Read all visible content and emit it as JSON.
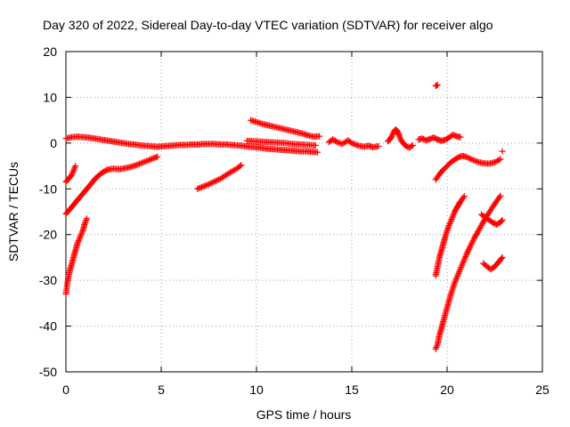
{
  "chart_data": {
    "type": "scatter",
    "title": "Day 320 of 2022, Sidereal Day-to-day VTEC variation (SDTVAR) for receiver algo",
    "xlabel": "GPS time / hours",
    "ylabel": "SDTVAR / TECUs",
    "xlim": [
      0,
      25
    ],
    "ylim": [
      -50,
      20
    ],
    "xticks": [
      0,
      5,
      10,
      15,
      20,
      25
    ],
    "yticks": [
      -50,
      -40,
      -30,
      -20,
      -10,
      0,
      10,
      20
    ],
    "xtick_labels": [
      "0",
      "5",
      "10",
      "15",
      "20",
      "25"
    ],
    "ytick_labels": [
      "-50",
      "-40",
      "-30",
      "-20",
      "-10",
      "0",
      "10",
      "20"
    ],
    "grid": true,
    "marker": "plus",
    "series": [
      {
        "name": "SDTVAR",
        "color": "#ff0000",
        "segments": [
          {
            "x": [
              0.0,
              0.1,
              0.2,
              0.3,
              0.4,
              0.5,
              0.6,
              0.7,
              0.8,
              0.9,
              1.0,
              1.1
            ],
            "y": [
              -33,
              -30,
              -28,
              -26.5,
              -25,
              -23.5,
              -22,
              -21,
              -20,
              -19,
              -17.5,
              -16.5
            ]
          },
          {
            "x": [
              0.0,
              0.1,
              0.2,
              0.3,
              0.4,
              0.5
            ],
            "y": [
              -8.5,
              -8,
              -7.5,
              -7,
              -6,
              -5
            ]
          },
          {
            "x": [
              0.0,
              0.2,
              0.4,
              0.6,
              0.8,
              1.0,
              1.2,
              1.4,
              1.6,
              1.8,
              2.0,
              2.2
            ],
            "y": [
              -15.5,
              -14.5,
              -13.5,
              -12.5,
              -11.5,
              -10.5,
              -9.5,
              -8.5,
              -7.5,
              -6.8,
              -6.2,
              -5.8
            ]
          },
          {
            "x": [
              2.2,
              2.5,
              2.8,
              3.1,
              3.4,
              3.7,
              4.0,
              4.3,
              4.6,
              4.8
            ],
            "y": [
              -5.8,
              -5.6,
              -5.7,
              -5.5,
              -5.2,
              -4.8,
              -4.3,
              -3.8,
              -3.3,
              -3.0
            ]
          },
          {
            "x": [
              0.0,
              0.3,
              0.6,
              0.9,
              1.2,
              1.5,
              1.8,
              2.1,
              2.4,
              2.7,
              3.0,
              3.3,
              3.6,
              3.9,
              4.2,
              4.5,
              4.8,
              5.1,
              5.4,
              5.7,
              6.0,
              6.3,
              6.6,
              6.9,
              7.2,
              7.5,
              7.8,
              8.1,
              8.4,
              8.7,
              9.0,
              9.3,
              9.6,
              9.9,
              10.2,
              10.5,
              10.8,
              11.1,
              11.4,
              11.7,
              12.0,
              12.3,
              12.6,
              12.9,
              13.2
            ],
            "y": [
              1.0,
              1.3,
              1.4,
              1.3,
              1.2,
              1.0,
              0.8,
              0.6,
              0.4,
              0.2,
              0.0,
              -0.2,
              -0.3,
              -0.5,
              -0.6,
              -0.7,
              -0.8,
              -0.7,
              -0.6,
              -0.5,
              -0.4,
              -0.4,
              -0.3,
              -0.3,
              -0.2,
              -0.2,
              -0.2,
              -0.3,
              -0.3,
              -0.4,
              -0.5,
              -0.6,
              -0.8,
              -0.9,
              -1.0,
              -1.2,
              -1.3,
              -1.4,
              -1.5,
              -1.6,
              -1.7,
              -1.8,
              -1.8,
              -1.9,
              -2.0
            ]
          },
          {
            "x": [
              9.7,
              10.0,
              10.3,
              10.6,
              10.9,
              11.2,
              11.5,
              11.8,
              12.1,
              12.4,
              12.7,
              13.0,
              13.3
            ],
            "y": [
              5.0,
              4.6,
              4.2,
              3.9,
              3.6,
              3.3,
              3.0,
              2.7,
              2.4,
              2.1,
              1.7,
              1.4,
              1.5
            ]
          },
          {
            "x": [
              9.5,
              9.9,
              10.3,
              10.7,
              11.1,
              11.5,
              11.9,
              12.3,
              12.7,
              13.1
            ],
            "y": [
              0.5,
              0.4,
              0.3,
              0.2,
              0.1,
              0.0,
              -0.2,
              -0.3,
              -0.4,
              -0.5
            ]
          },
          {
            "x": [
              6.9,
              7.2,
              7.5,
              7.8,
              8.1,
              8.4,
              8.7,
              9.0,
              9.2
            ],
            "y": [
              -10,
              -9.5,
              -9,
              -8.4,
              -7.8,
              -7,
              -6.2,
              -5.5,
              -4.8
            ]
          },
          {
            "x": [
              13.8,
              14.0,
              14.2,
              14.5,
              14.8,
              15.0,
              15.3,
              15.6,
              15.9,
              16.1,
              16.4
            ],
            "y": [
              0.2,
              0.8,
              0.3,
              -0.2,
              0.6,
              0.0,
              -0.5,
              -0.8,
              -0.6,
              -0.9,
              -0.7
            ]
          },
          {
            "x": [
              16.9,
              17.0,
              17.1,
              17.2,
              17.3,
              17.4,
              17.5,
              17.6,
              17.8,
              18.0,
              18.2
            ],
            "y": [
              0.4,
              0.8,
              1.5,
              2.5,
              3.0,
              2.6,
              1.5,
              0.5,
              -0.5,
              -1.0,
              -0.5
            ]
          },
          {
            "x": [
              18.5,
              18.7,
              18.9,
              19.1,
              19.3,
              19.5,
              19.7,
              19.9,
              20.1,
              20.3,
              20.5,
              20.7
            ],
            "y": [
              0.8,
              1.0,
              0.6,
              0.9,
              1.2,
              0.8,
              0.5,
              0.7,
              1.2,
              1.8,
              1.5,
              1.3
            ]
          },
          {
            "x": [
              19.4,
              19.5
            ],
            "y": [
              12.5,
              12.7
            ]
          },
          {
            "x": [
              19.4,
              19.6,
              19.8,
              20.0,
              20.2,
              20.4,
              20.6,
              20.8,
              21.0,
              21.3,
              21.6,
              21.9,
              22.2,
              22.5,
              22.8
            ],
            "y": [
              -8.0,
              -6.8,
              -5.8,
              -5.0,
              -4.2,
              -3.6,
              -3.1,
              -2.8,
              -3.0,
              -3.6,
              -4.1,
              -4.4,
              -4.5,
              -4.2,
              -3.5
            ]
          },
          {
            "x": [
              22.9
            ],
            "y": [
              -1.8
            ]
          },
          {
            "x": [
              19.4,
              19.5,
              19.6,
              19.7,
              19.8,
              19.9,
              20.0,
              20.1,
              20.2,
              20.3,
              20.4,
              20.5,
              20.6,
              20.7,
              20.8,
              20.9
            ],
            "y": [
              -29,
              -27,
              -25,
              -23.5,
              -22,
              -20.5,
              -19.2,
              -18,
              -17,
              -16,
              -15,
              -14.2,
              -13.5,
              -12.8,
              -12.2,
              -11.6
            ]
          },
          {
            "x": [
              19.4,
              19.5,
              19.6,
              19.7,
              19.8,
              20.0,
              20.2,
              20.4,
              20.6,
              20.8,
              21.0,
              21.2,
              21.4,
              21.6,
              21.8,
              22.0,
              22.2,
              22.4,
              22.6,
              22.8
            ],
            "y": [
              -45,
              -44,
              -42,
              -40.5,
              -39,
              -36,
              -33,
              -30.5,
              -28.5,
              -26.5,
              -24.5,
              -22.7,
              -21,
              -19.5,
              -18,
              -16.5,
              -15.2,
              -13.9,
              -12.7,
              -11.5
            ]
          },
          {
            "x": [
              21.8,
              22.0,
              22.2,
              22.4,
              22.6,
              22.8,
              22.9
            ],
            "y": [
              -15.6,
              -16.2,
              -16.8,
              -17.4,
              -17.8,
              -17.3,
              -16.8
            ]
          },
          {
            "x": [
              21.9,
              22.1,
              22.3,
              22.5,
              22.7,
              22.9
            ],
            "y": [
              -26.3,
              -27.0,
              -27.6,
              -27.0,
              -26.0,
              -25.0
            ]
          }
        ]
      }
    ]
  }
}
